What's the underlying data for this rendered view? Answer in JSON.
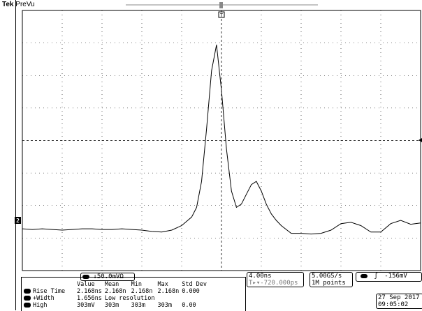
{
  "header": {
    "brand": "Tek",
    "mode": "PreVu"
  },
  "ground_marker": "2",
  "trigger_marker": "T",
  "channel": {
    "scale": "50.0mV",
    "coupling_symbol": "↓",
    "impedance_symbol": "Ω"
  },
  "timebase": {
    "scale": "4.00ns",
    "position": "-720.000ps"
  },
  "acquisition": {
    "sample_rate": "5.00GS/s",
    "record_length": "1M points"
  },
  "trigger": {
    "slope_symbol": "ʃ",
    "level": "-156mV"
  },
  "datetime": {
    "date": "27 Sep 2017",
    "time": "09:05:02"
  },
  "measurements": {
    "headers": [
      "Value",
      "Mean",
      "Min",
      "Max",
      "Std Dev"
    ],
    "rows": [
      {
        "name": "Rise Time",
        "cells": [
          "2.168ns",
          "2.168n",
          "2.168n",
          "2.168n",
          "0.000"
        ]
      },
      {
        "name": "+Width",
        "cells": [
          "1.656ns",
          "Low resolution",
          "",
          "",
          ""
        ]
      },
      {
        "name": "High",
        "cells": [
          "303mV",
          "303m",
          "303m",
          "303m",
          "0.00"
        ]
      }
    ]
  },
  "colors": {
    "background": "#ffffff",
    "trace": "#000000",
    "grid": "#000000"
  },
  "waveform": {
    "description_free": true,
    "t_ns": [
      -20,
      -19,
      -18,
      -17,
      -16,
      -15,
      -14,
      -13,
      -12,
      -11,
      -10,
      -9,
      -8,
      -7,
      -6,
      -5,
      -4,
      -3,
      -2.5,
      -2,
      -1.5,
      -1,
      -0.5,
      0,
      0.5,
      1,
      1.5,
      2,
      2.5,
      3,
      3.5,
      4,
      4.5,
      5,
      5.5,
      6,
      7,
      8,
      9,
      10,
      11,
      12,
      13,
      14,
      15,
      16,
      17,
      18,
      19,
      20
    ],
    "v_mV": [
      -13,
      -14,
      -13,
      -14,
      -15,
      -14,
      -13,
      -13,
      -14,
      -14,
      -13,
      -14,
      -15,
      -17,
      -18,
      -15,
      -8,
      5,
      20,
      60,
      140,
      230,
      270,
      200,
      110,
      45,
      20,
      25,
      40,
      55,
      60,
      45,
      25,
      10,
      0,
      -8,
      -20,
      -20,
      -21,
      -20,
      -15,
      -5,
      -3,
      -8,
      -18,
      -18,
      -5,
      0,
      -6,
      -4
    ]
  }
}
